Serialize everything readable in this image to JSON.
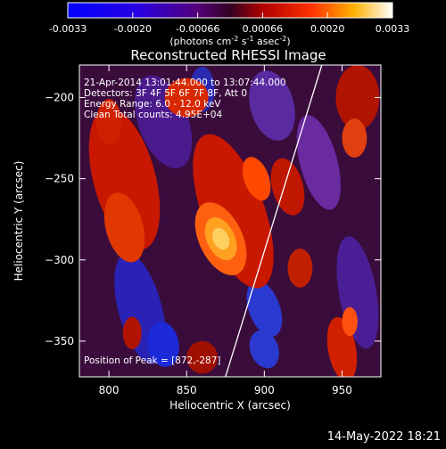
{
  "colorbar": {
    "ticks": [
      "-0.0033",
      "-0.0020",
      "-0.00066",
      "0.00066",
      "0.0020",
      "0.0033"
    ],
    "unit_label": "(photons cm",
    "unit_sup1": "-2",
    "unit_mid": " s",
    "unit_sup2": "-1",
    "unit_end": " asec",
    "unit_sup3": "-2",
    "unit_close": ")"
  },
  "chart_data": {
    "type": "heatmap",
    "title": "Reconstructed RHESSI Image",
    "xlabel": "Heliocentric X (arcsec)",
    "ylabel": "Heliocentric Y (arcsec)",
    "xlim": [
      781,
      975
    ],
    "ylim": [
      -372,
      -180
    ],
    "xticks": [
      800,
      850,
      900,
      950
    ],
    "yticks": [
      -200,
      -250,
      -300,
      -350
    ],
    "colorscale_range": [
      -0.0033,
      0.0033
    ],
    "annotations": [
      "21-Apr-2014 13:01:44.000 to 13:07:44.000",
      "Detectors: 3F 4F 5F 6F 7F 8F, Att 0",
      "Energy Range: 6.0 - 12.0 keV",
      "Clean     Total counts: 4.95E+04"
    ],
    "peak_label": "Position of Peak = [872,-287]",
    "peak": [
      872,
      -287
    ],
    "limb_line": [
      [
        875,
        -372
      ],
      [
        937,
        -180
      ]
    ]
  },
  "footer": {
    "timestamp": "14-May-2022 18:21"
  }
}
